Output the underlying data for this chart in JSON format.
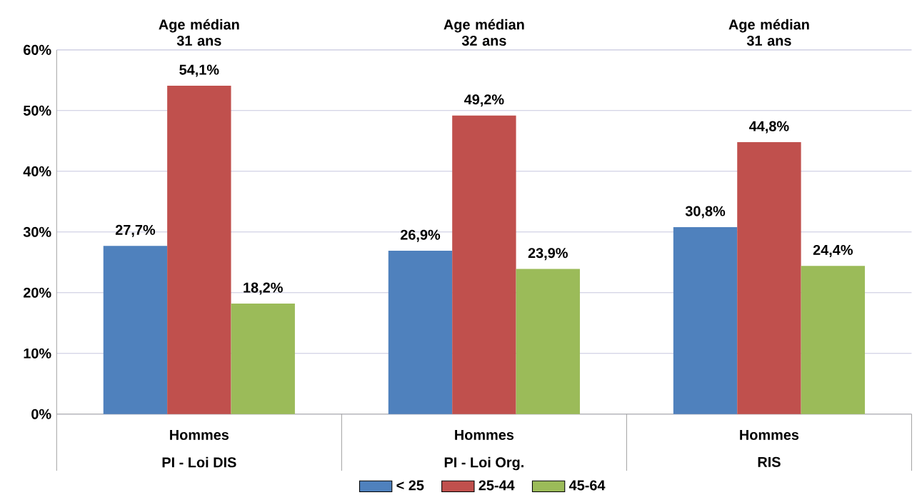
{
  "chart_data": {
    "type": "bar",
    "categories": [
      "PI - Loi DIS",
      "PI - Loi Org.",
      "RIS"
    ],
    "series": [
      {
        "name": "< 25",
        "color": "#4f81bd",
        "values": [
          27.7,
          26.9,
          30.8
        ],
        "value_labels": [
          "27,7%",
          "26,9%",
          "30,8%"
        ]
      },
      {
        "name": "25-44",
        "color": "#c0504d",
        "values": [
          54.1,
          49.2,
          44.8
        ],
        "value_labels": [
          "54,1%",
          "49,2%",
          "44,8%"
        ]
      },
      {
        "name": "45-64",
        "color": "#9bbb59",
        "values": [
          18.2,
          23.9,
          24.4
        ],
        "value_labels": [
          "18,2%",
          "23,9%",
          "24,4%"
        ]
      }
    ],
    "ylim": [
      0,
      60
    ],
    "yticks": [
      {
        "value": 0,
        "label": "0%"
      },
      {
        "value": 10,
        "label": "10%"
      },
      {
        "value": 20,
        "label": "20%"
      },
      {
        "value": 30,
        "label": "30%"
      },
      {
        "value": 40,
        "label": "40%"
      },
      {
        "value": 50,
        "label": "50%"
      },
      {
        "value": 60,
        "label": "60%"
      }
    ],
    "grid": "y",
    "legend": "bottom",
    "annotations": [
      "Age médian 31 ans",
      "Age médian 32 ans",
      "Age médian 31 ans",
      "Hommes",
      "Hommes",
      "Hommes"
    ]
  }
}
